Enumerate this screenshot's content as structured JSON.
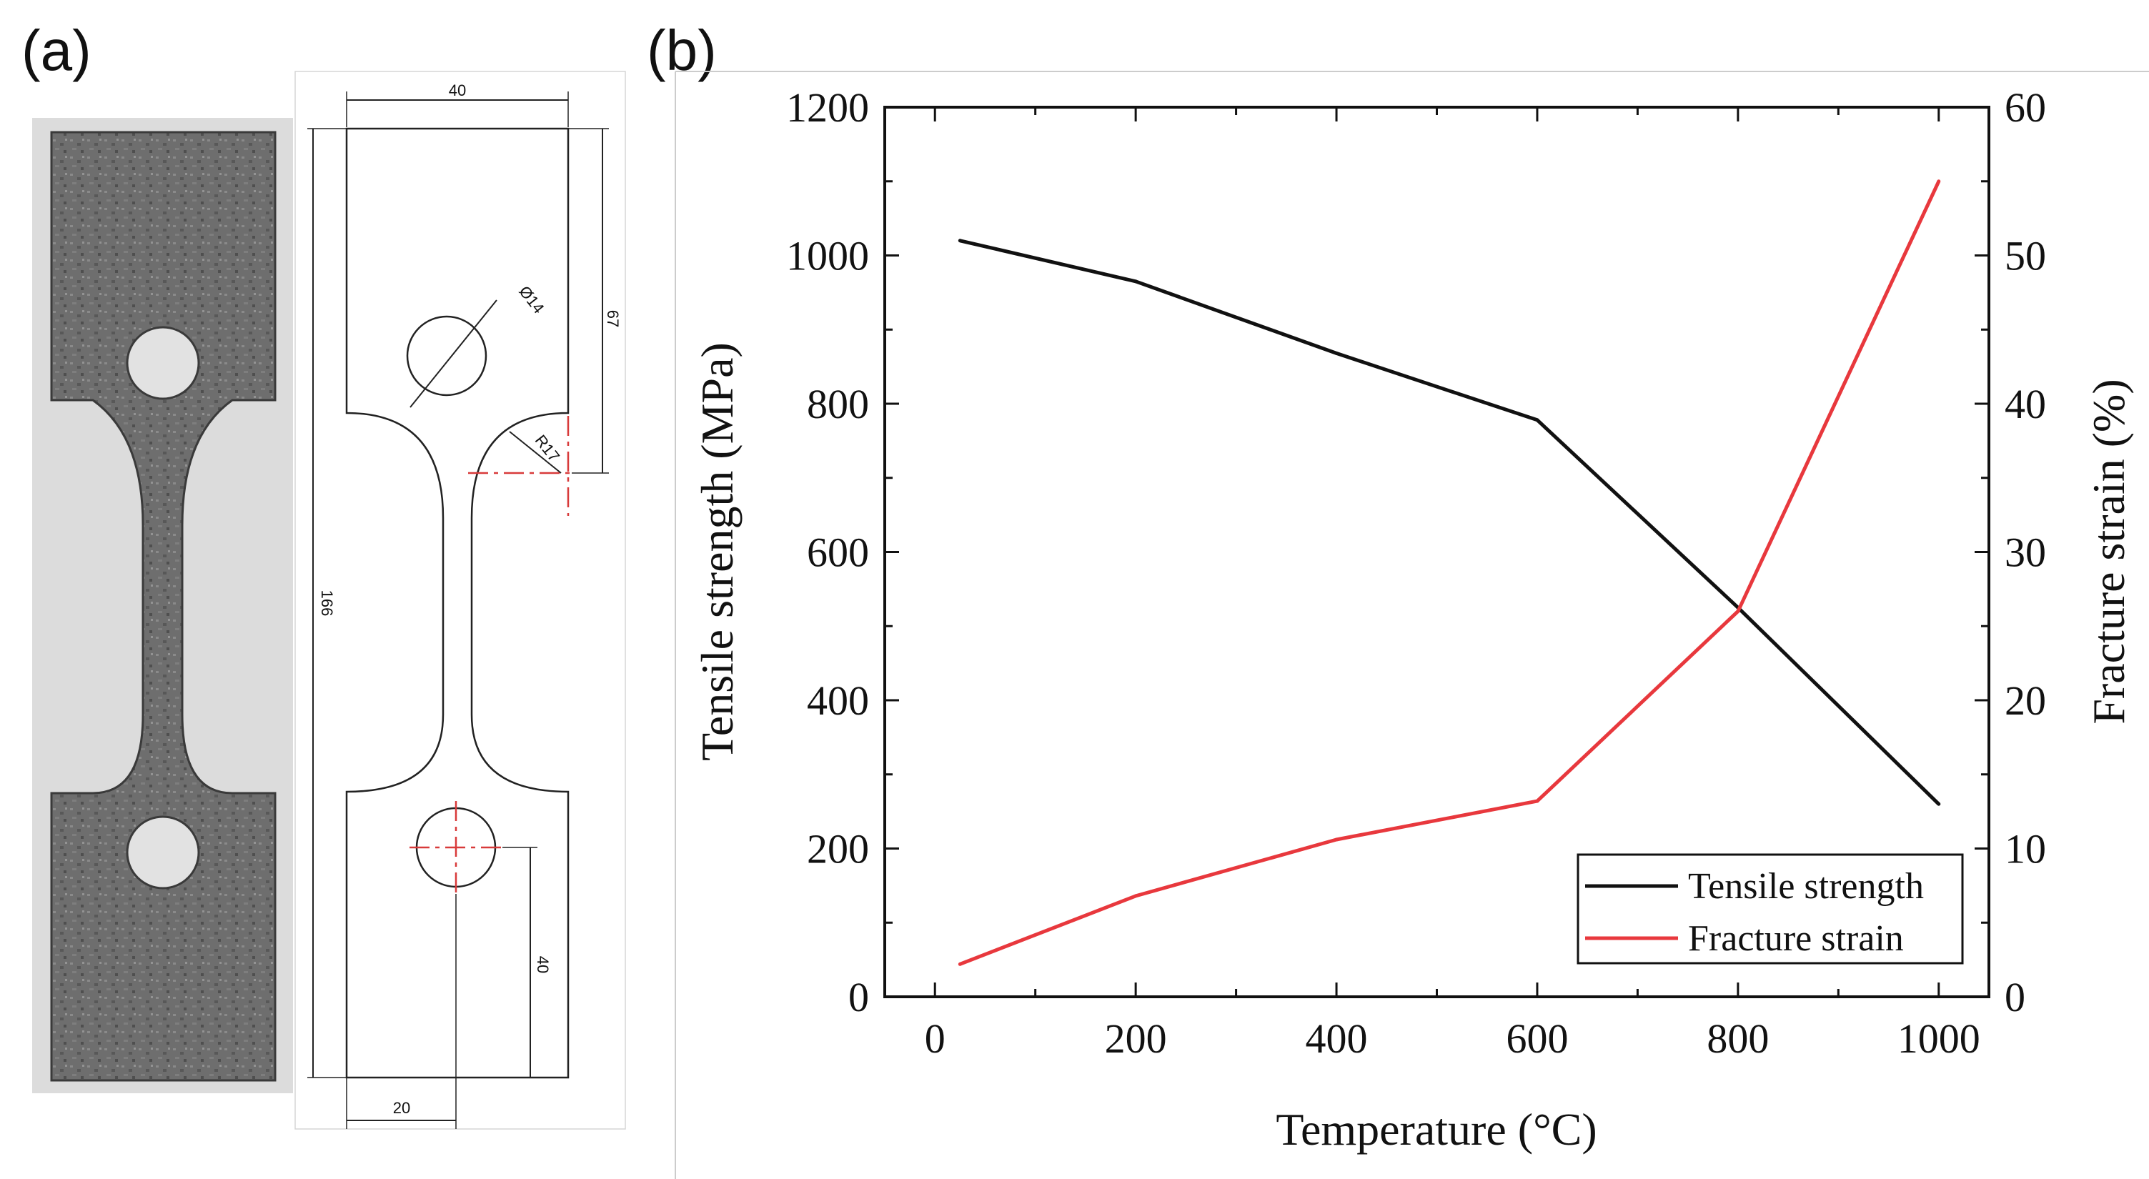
{
  "figure": {
    "panel_a_label": "(a)",
    "panel_b_label": "(b)"
  },
  "drawing": {
    "dimensions": {
      "width": "40",
      "length": "166",
      "upper": "67",
      "lower": "40",
      "hole_offset": "20",
      "hole_diameter": "Ø14",
      "radius": "R17"
    }
  },
  "colors": {
    "tensile": "#111111",
    "fracture": "#e8383d",
    "centerline": "#d83a3a"
  },
  "chart_data": {
    "type": "line",
    "xlabel": "Temperature (°C)",
    "ylabel": "Tensile strength (MPa)",
    "y2label": "Fracture strain (%)",
    "xlim": [
      -50,
      1050
    ],
    "ylim": [
      0,
      1200
    ],
    "y2lim": [
      0,
      60
    ],
    "xticks": [
      0,
      200,
      400,
      600,
      800,
      1000
    ],
    "yticks": [
      0,
      200,
      400,
      600,
      800,
      1000,
      1200
    ],
    "y2ticks": [
      0,
      10,
      20,
      30,
      40,
      50,
      60
    ],
    "legend_position": "bottom-right",
    "series": [
      {
        "name": "Tensile strength",
        "axis": "left",
        "color": "#111111",
        "x": [
          25,
          200,
          400,
          600,
          800,
          1000
        ],
        "y": [
          1020,
          965,
          868,
          778,
          525,
          260
        ]
      },
      {
        "name": "Fracture strain",
        "axis": "right",
        "color": "#e8383d",
        "x": [
          25,
          200,
          400,
          600,
          800,
          1000
        ],
        "y": [
          2.2,
          6.8,
          10.6,
          13.2,
          26.0,
          55.0
        ]
      }
    ]
  }
}
